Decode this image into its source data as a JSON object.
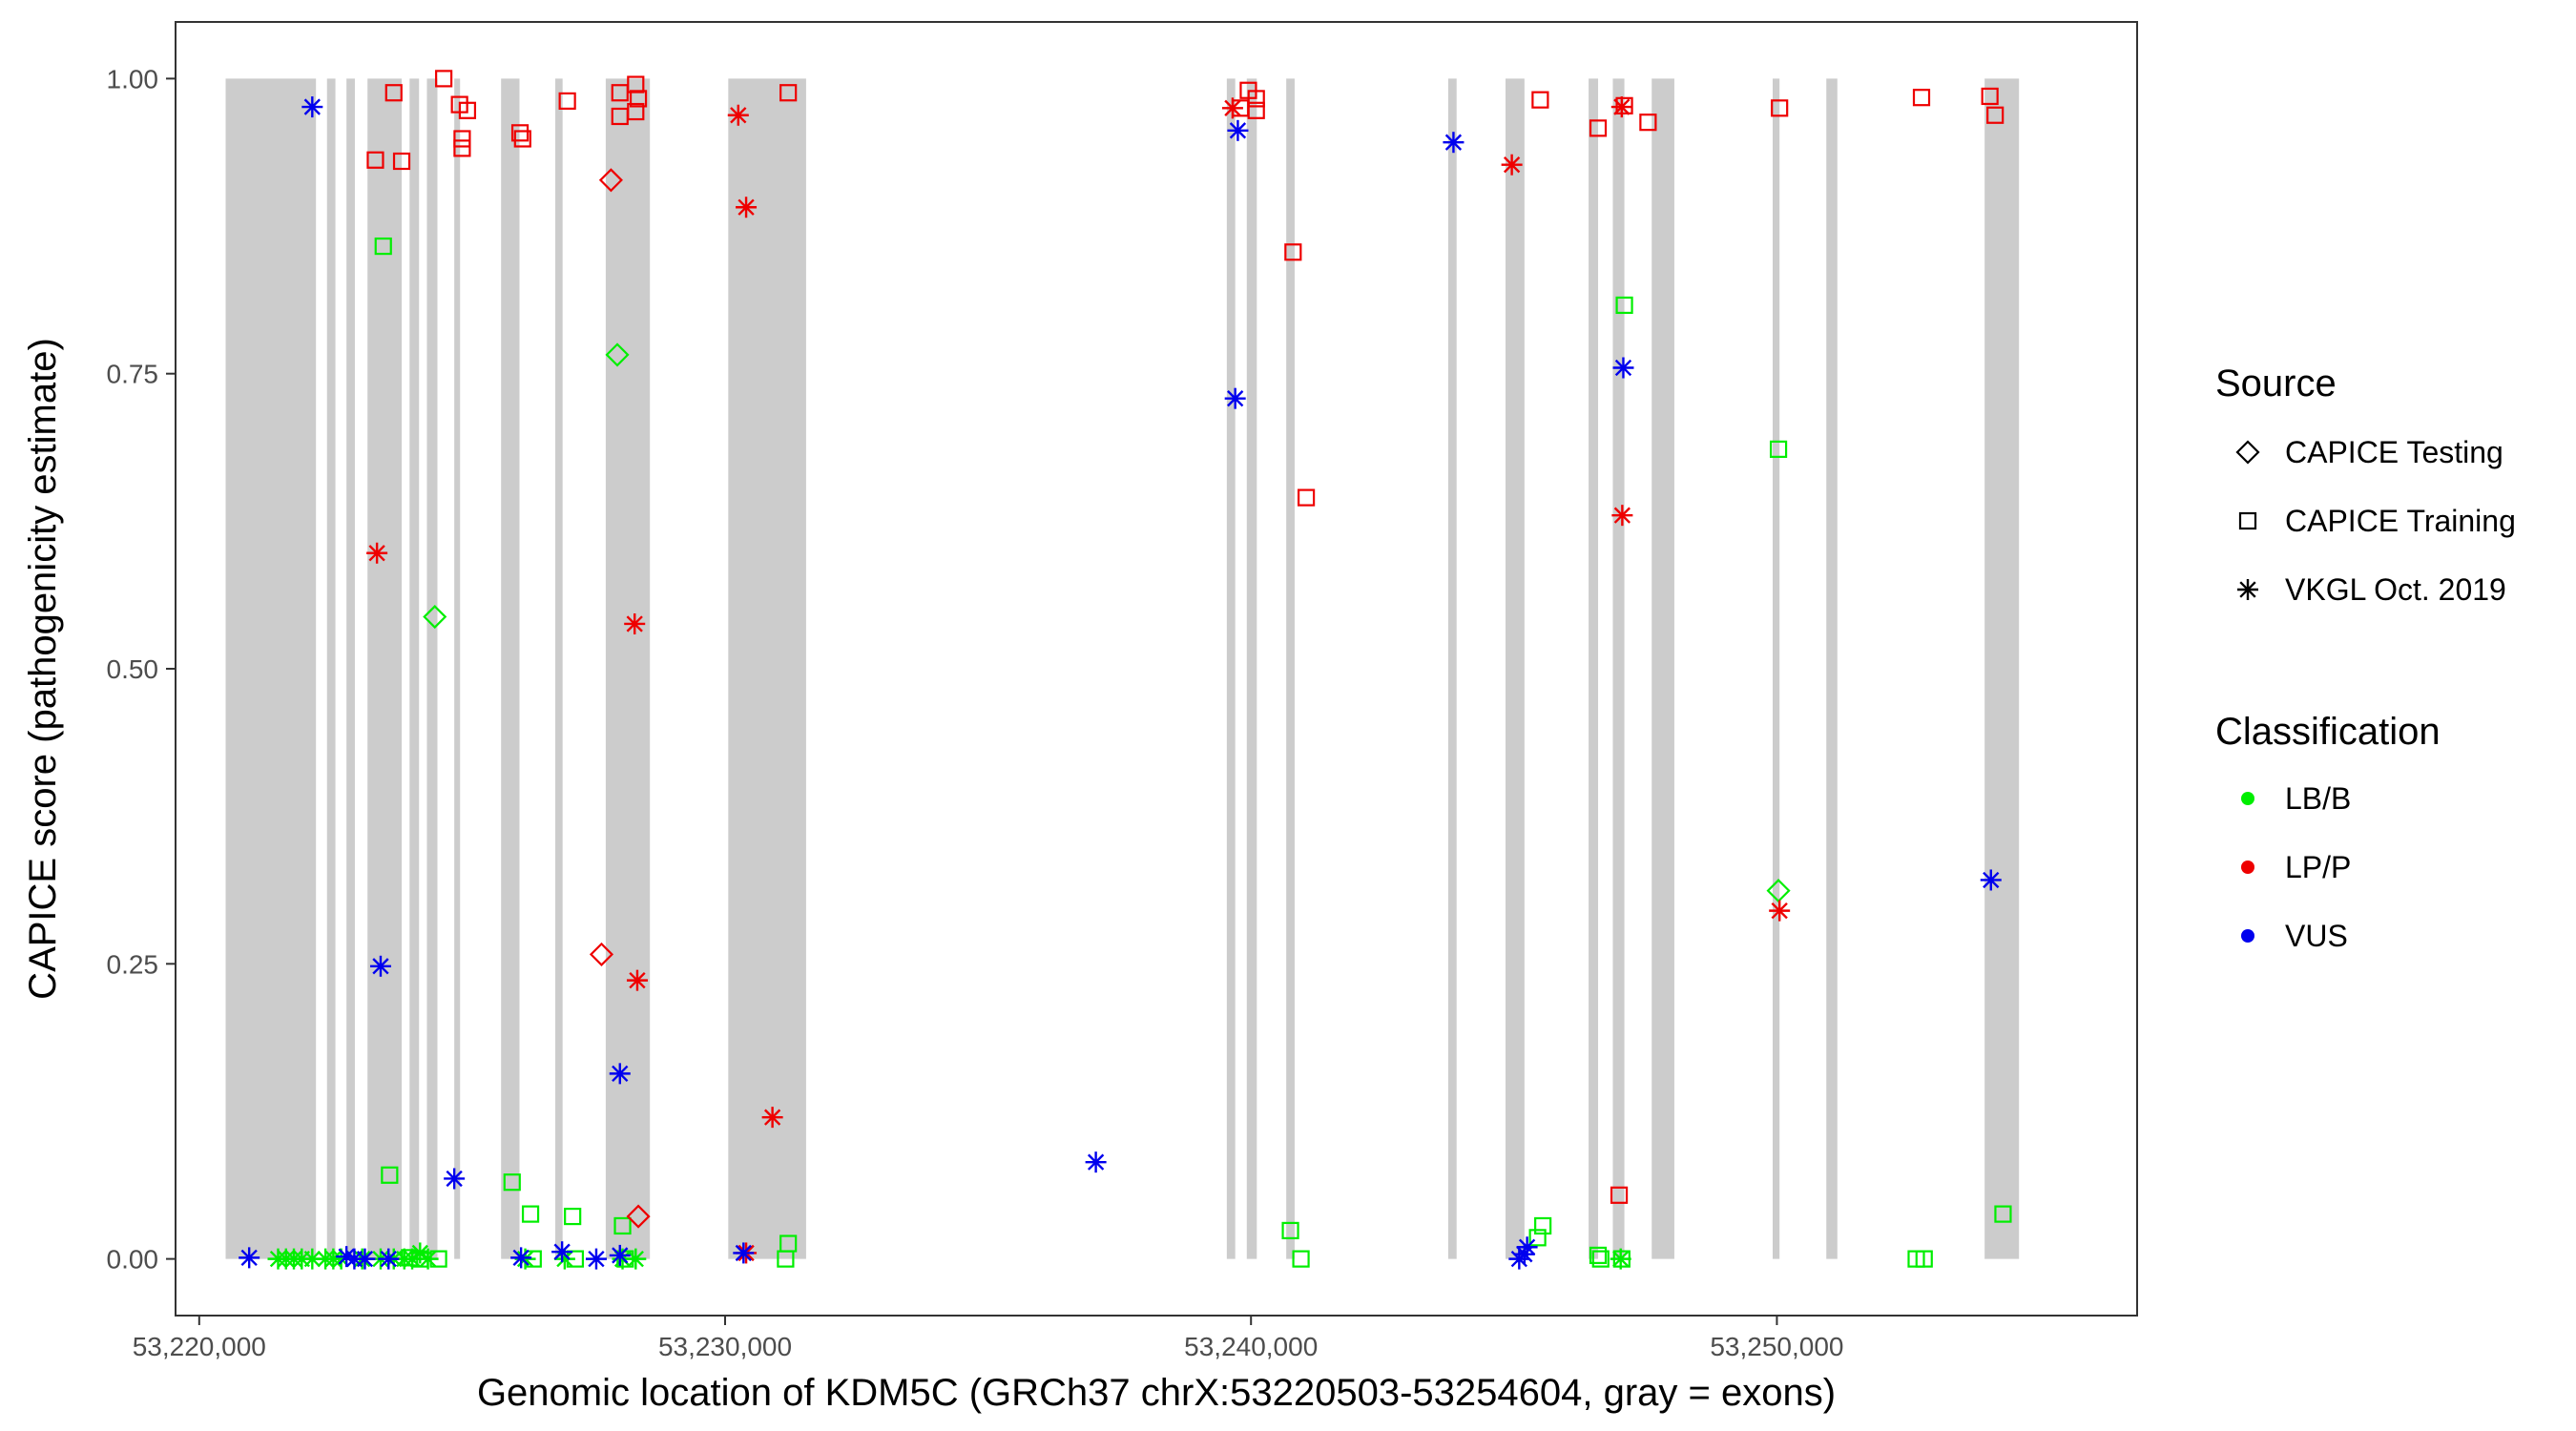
{
  "chart_data": {
    "type": "scatter",
    "title": "",
    "xlabel": "Genomic location of KDM5C (GRCh37 chrX:53220503-53254604, gray = exons)",
    "ylabel": "CAPICE score (pathogenicity estimate)",
    "xlim": [
      53219550,
      53256850
    ],
    "ylim": [
      -0.048,
      1.048
    ],
    "xticks": [
      53220000,
      53230000,
      53240000,
      53250000
    ],
    "xtick_labels": [
      "53,220,000",
      "53,230,000",
      "53,240,000",
      "53,250,000"
    ],
    "yticks": [
      0,
      0.25,
      0.5,
      0.75,
      1
    ],
    "ytick_labels": [
      "0.00",
      "0.25",
      "0.50",
      "0.75",
      "1.00"
    ],
    "grid": false,
    "legend_position": "right",
    "exons": [
      [
        53220503,
        53222220
      ],
      [
        53222430,
        53222590
      ],
      [
        53222800,
        53222960
      ],
      [
        53223200,
        53223850
      ],
      [
        53224000,
        53224180
      ],
      [
        53224330,
        53224530
      ],
      [
        53224850,
        53224960
      ],
      [
        53225740,
        53226090
      ],
      [
        53226770,
        53226910
      ],
      [
        53227730,
        53228570
      ],
      [
        53230060,
        53231540
      ],
      [
        53239540,
        53239700
      ],
      [
        53239920,
        53240110
      ],
      [
        53240670,
        53240830
      ],
      [
        53243750,
        53243910
      ],
      [
        53244840,
        53245200
      ],
      [
        53246420,
        53246600
      ],
      [
        53246880,
        53247100
      ],
      [
        53247620,
        53248050
      ],
      [
        53249920,
        53250050
      ],
      [
        53250940,
        53251150
      ],
      [
        53253950,
        53254604
      ]
    ],
    "legend": {
      "source_title": "Source",
      "source_items": [
        {
          "label": "CAPICE Testing",
          "shape": "diamond"
        },
        {
          "label": "CAPICE Training",
          "shape": "square"
        },
        {
          "label": "VKGL Oct. 2019",
          "shape": "asterisk"
        }
      ],
      "class_title": "Classification",
      "class_items": [
        {
          "label": "LB/B",
          "color": "#00ee00"
        },
        {
          "label": "LP/P",
          "color": "#ee0000"
        },
        {
          "label": "VUS",
          "color": "#0000ee"
        }
      ]
    },
    "series": [
      {
        "name": "LB/B",
        "color": "#00ee00",
        "points": [
          {
            "x": 53221500,
            "y": 0.0,
            "s": "asterisk"
          },
          {
            "x": 53221650,
            "y": 0.0,
            "s": "asterisk"
          },
          {
            "x": 53221800,
            "y": 0.0,
            "s": "asterisk"
          },
          {
            "x": 53221950,
            "y": 0.0,
            "s": "asterisk"
          },
          {
            "x": 53222150,
            "y": 0.0,
            "s": "asterisk"
          },
          {
            "x": 53222400,
            "y": 0.0,
            "s": "asterisk"
          },
          {
            "x": 53222550,
            "y": 0.0,
            "s": "asterisk"
          },
          {
            "x": 53222700,
            "y": 0.0,
            "s": "asterisk"
          },
          {
            "x": 53223100,
            "y": 0.0,
            "s": "asterisk"
          },
          {
            "x": 53223450,
            "y": 0.0,
            "s": "asterisk"
          },
          {
            "x": 53223700,
            "y": 0.0,
            "s": "asterisk"
          },
          {
            "x": 53223900,
            "y": 0.0,
            "s": "asterisk"
          },
          {
            "x": 53224050,
            "y": 0.0,
            "s": "asterisk"
          },
          {
            "x": 53224200,
            "y": 0.005,
            "s": "asterisk"
          },
          {
            "x": 53224350,
            "y": 0.0,
            "s": "asterisk"
          },
          {
            "x": 53226200,
            "y": 0.0,
            "s": "asterisk"
          },
          {
            "x": 53226950,
            "y": 0.0,
            "s": "asterisk"
          },
          {
            "x": 53228050,
            "y": 0.0,
            "s": "asterisk"
          },
          {
            "x": 53228300,
            "y": 0.0,
            "s": "asterisk"
          },
          {
            "x": 53247030,
            "y": 0.0,
            "s": "asterisk"
          },
          {
            "x": 53224480,
            "y": 0.544,
            "s": "diamond"
          },
          {
            "x": 53227950,
            "y": 0.766,
            "s": "diamond"
          },
          {
            "x": 53250030,
            "y": 0.312,
            "s": "diamond"
          },
          {
            "x": 53223500,
            "y": 0.858,
            "s": "square"
          },
          {
            "x": 53223620,
            "y": 0.071,
            "s": "square"
          },
          {
            "x": 53224000,
            "y": 0.001,
            "s": "square"
          },
          {
            "x": 53224200,
            "y": 0.0,
            "s": "square"
          },
          {
            "x": 53224550,
            "y": 0.0,
            "s": "square"
          },
          {
            "x": 53225950,
            "y": 0.065,
            "s": "square"
          },
          {
            "x": 53226300,
            "y": 0.038,
            "s": "square"
          },
          {
            "x": 53226350,
            "y": 0.0,
            "s": "square"
          },
          {
            "x": 53227100,
            "y": 0.036,
            "s": "square"
          },
          {
            "x": 53227150,
            "y": 0.0,
            "s": "square"
          },
          {
            "x": 53228050,
            "y": 0.028,
            "s": "square"
          },
          {
            "x": 53228100,
            "y": 0.0,
            "s": "square"
          },
          {
            "x": 53231200,
            "y": 0.013,
            "s": "square"
          },
          {
            "x": 53231150,
            "y": 0.0,
            "s": "square"
          },
          {
            "x": 53240750,
            "y": 0.024,
            "s": "square"
          },
          {
            "x": 53240950,
            "y": 0.0,
            "s": "square"
          },
          {
            "x": 53245550,
            "y": 0.028,
            "s": "square"
          },
          {
            "x": 53245450,
            "y": 0.018,
            "s": "square"
          },
          {
            "x": 53246600,
            "y": 0.003,
            "s": "square"
          },
          {
            "x": 53246650,
            "y": 0.0,
            "s": "square"
          },
          {
            "x": 53247100,
            "y": 0.808,
            "s": "square"
          },
          {
            "x": 53247050,
            "y": 0.0,
            "s": "square"
          },
          {
            "x": 53250030,
            "y": 0.686,
            "s": "square"
          },
          {
            "x": 53252650,
            "y": 0.0,
            "s": "square"
          },
          {
            "x": 53252800,
            "y": 0.0,
            "s": "square"
          },
          {
            "x": 53254300,
            "y": 0.038,
            "s": "square"
          }
        ]
      },
      {
        "name": "LP/P",
        "color": "#ee0000",
        "points": [
          {
            "x": 53223380,
            "y": 0.598,
            "s": "asterisk"
          },
          {
            "x": 53228280,
            "y": 0.538,
            "s": "asterisk"
          },
          {
            "x": 53228330,
            "y": 0.236,
            "s": "asterisk"
          },
          {
            "x": 53230250,
            "y": 0.969,
            "s": "asterisk"
          },
          {
            "x": 53230400,
            "y": 0.891,
            "s": "asterisk"
          },
          {
            "x": 53230900,
            "y": 0.12,
            "s": "asterisk"
          },
          {
            "x": 53230400,
            "y": 0.005,
            "s": "asterisk"
          },
          {
            "x": 53239650,
            "y": 0.975,
            "s": "asterisk"
          },
          {
            "x": 53244960,
            "y": 0.927,
            "s": "asterisk"
          },
          {
            "x": 53247050,
            "y": 0.976,
            "s": "asterisk"
          },
          {
            "x": 53247060,
            "y": 0.63,
            "s": "asterisk"
          },
          {
            "x": 53250050,
            "y": 0.295,
            "s": "asterisk"
          },
          {
            "x": 53227830,
            "y": 0.914,
            "s": "diamond"
          },
          {
            "x": 53227650,
            "y": 0.258,
            "s": "diamond"
          },
          {
            "x": 53228350,
            "y": 0.036,
            "s": "diamond"
          },
          {
            "x": 53224650,
            "y": 1.0,
            "s": "square"
          },
          {
            "x": 53223700,
            "y": 0.988,
            "s": "square"
          },
          {
            "x": 53223350,
            "y": 0.931,
            "s": "square"
          },
          {
            "x": 53223850,
            "y": 0.93,
            "s": "square"
          },
          {
            "x": 53224950,
            "y": 0.978,
            "s": "square"
          },
          {
            "x": 53225100,
            "y": 0.973,
            "s": "square"
          },
          {
            "x": 53225000,
            "y": 0.949,
            "s": "square"
          },
          {
            "x": 53225000,
            "y": 0.941,
            "s": "square"
          },
          {
            "x": 53226100,
            "y": 0.954,
            "s": "square"
          },
          {
            "x": 53226150,
            "y": 0.949,
            "s": "square"
          },
          {
            "x": 53227000,
            "y": 0.981,
            "s": "square"
          },
          {
            "x": 53228000,
            "y": 0.988,
            "s": "square"
          },
          {
            "x": 53228000,
            "y": 0.968,
            "s": "square"
          },
          {
            "x": 53228300,
            "y": 0.995,
            "s": "square"
          },
          {
            "x": 53228350,
            "y": 0.983,
            "s": "square"
          },
          {
            "x": 53228300,
            "y": 0.972,
            "s": "square"
          },
          {
            "x": 53231200,
            "y": 0.988,
            "s": "square"
          },
          {
            "x": 53239800,
            "y": 0.975,
            "s": "square"
          },
          {
            "x": 53239950,
            "y": 0.99,
            "s": "square"
          },
          {
            "x": 53240100,
            "y": 0.983,
            "s": "square"
          },
          {
            "x": 53240100,
            "y": 0.973,
            "s": "square"
          },
          {
            "x": 53240800,
            "y": 0.853,
            "s": "square"
          },
          {
            "x": 53241050,
            "y": 0.645,
            "s": "square"
          },
          {
            "x": 53245500,
            "y": 0.982,
            "s": "square"
          },
          {
            "x": 53246600,
            "y": 0.958,
            "s": "square"
          },
          {
            "x": 53247100,
            "y": 0.977,
            "s": "square"
          },
          {
            "x": 53247550,
            "y": 0.963,
            "s": "square"
          },
          {
            "x": 53247000,
            "y": 0.054,
            "s": "square"
          },
          {
            "x": 53250050,
            "y": 0.975,
            "s": "square"
          },
          {
            "x": 53252750,
            "y": 0.984,
            "s": "square"
          },
          {
            "x": 53254050,
            "y": 0.985,
            "s": "square"
          },
          {
            "x": 53254150,
            "y": 0.969,
            "s": "square"
          }
        ]
      },
      {
        "name": "VUS",
        "color": "#0000ee",
        "points": [
          {
            "x": 53222150,
            "y": 0.976,
            "s": "asterisk"
          },
          {
            "x": 53220950,
            "y": 0.001,
            "s": "asterisk"
          },
          {
            "x": 53222800,
            "y": 0.002,
            "s": "asterisk"
          },
          {
            "x": 53222950,
            "y": 0.0,
            "s": "asterisk"
          },
          {
            "x": 53223150,
            "y": 0.0,
            "s": "asterisk"
          },
          {
            "x": 53223450,
            "y": 0.248,
            "s": "asterisk"
          },
          {
            "x": 53223600,
            "y": 0.0,
            "s": "asterisk"
          },
          {
            "x": 53224850,
            "y": 0.068,
            "s": "asterisk"
          },
          {
            "x": 53226120,
            "y": 0.001,
            "s": "asterisk"
          },
          {
            "x": 53226900,
            "y": 0.006,
            "s": "asterisk"
          },
          {
            "x": 53227550,
            "y": 0.0,
            "s": "asterisk"
          },
          {
            "x": 53228000,
            "y": 0.157,
            "s": "asterisk"
          },
          {
            "x": 53228000,
            "y": 0.003,
            "s": "asterisk"
          },
          {
            "x": 53230350,
            "y": 0.005,
            "s": "asterisk"
          },
          {
            "x": 53237050,
            "y": 0.082,
            "s": "asterisk"
          },
          {
            "x": 53239700,
            "y": 0.729,
            "s": "asterisk"
          },
          {
            "x": 53239750,
            "y": 0.956,
            "s": "asterisk"
          },
          {
            "x": 53243850,
            "y": 0.946,
            "s": "asterisk"
          },
          {
            "x": 53245100,
            "y": 0.0,
            "s": "asterisk"
          },
          {
            "x": 53245200,
            "y": 0.004,
            "s": "asterisk"
          },
          {
            "x": 53245250,
            "y": 0.01,
            "s": "asterisk"
          },
          {
            "x": 53247080,
            "y": 0.755,
            "s": "asterisk"
          },
          {
            "x": 53254070,
            "y": 0.321,
            "s": "asterisk"
          }
        ]
      }
    ]
  }
}
